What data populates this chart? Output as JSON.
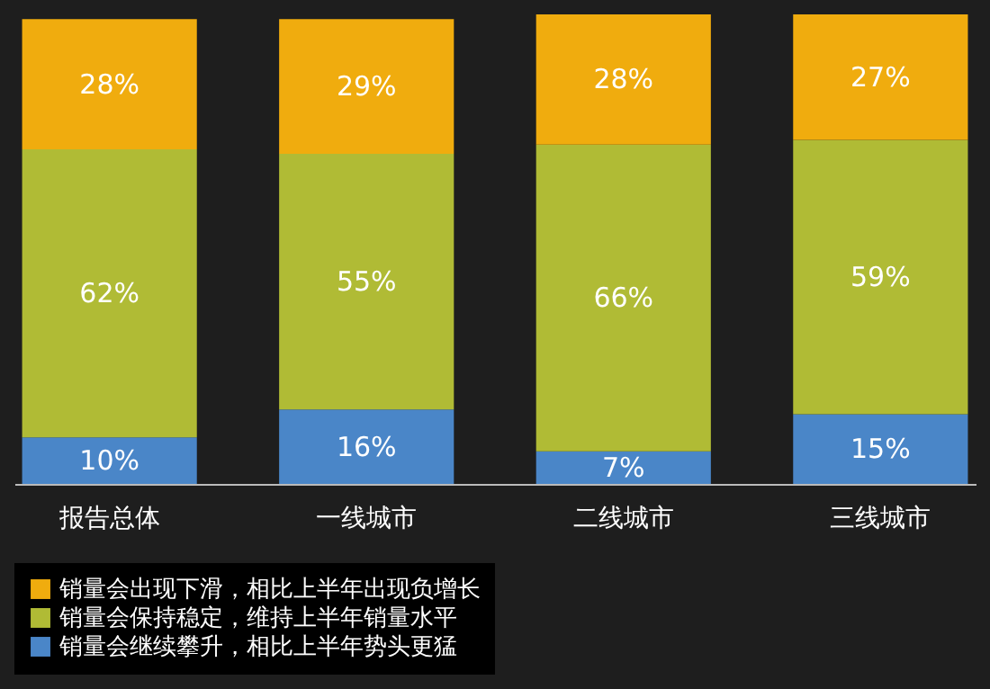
{
  "chart_data": {
    "type": "bar",
    "stacked": true,
    "legend": "bottom",
    "grid": false,
    "categories": [
      "报告总体",
      "一线城市",
      "二线城市",
      "三线城市"
    ],
    "series": [
      {
        "name": "销量会继续攀升，相比上半年势头更猛",
        "color": "#4a86c8",
        "values": [
          10,
          16,
          7,
          15
        ],
        "value_labels": [
          "10%",
          "16%",
          "7%",
          "15%"
        ]
      },
      {
        "name": "销量会保持稳定，维持上半年销量水平",
        "color": "#b0bb35",
        "values": [
          62,
          55,
          66,
          59
        ],
        "value_labels": [
          "62%",
          "55%",
          "66%",
          "59%"
        ]
      },
      {
        "name": "销量会出现下滑，相比上半年出现负增长",
        "color": "#f0ac0e",
        "values": [
          28,
          29,
          28,
          27
        ],
        "value_labels": [
          "28%",
          "29%",
          "28%",
          "27%"
        ]
      }
    ]
  }
}
